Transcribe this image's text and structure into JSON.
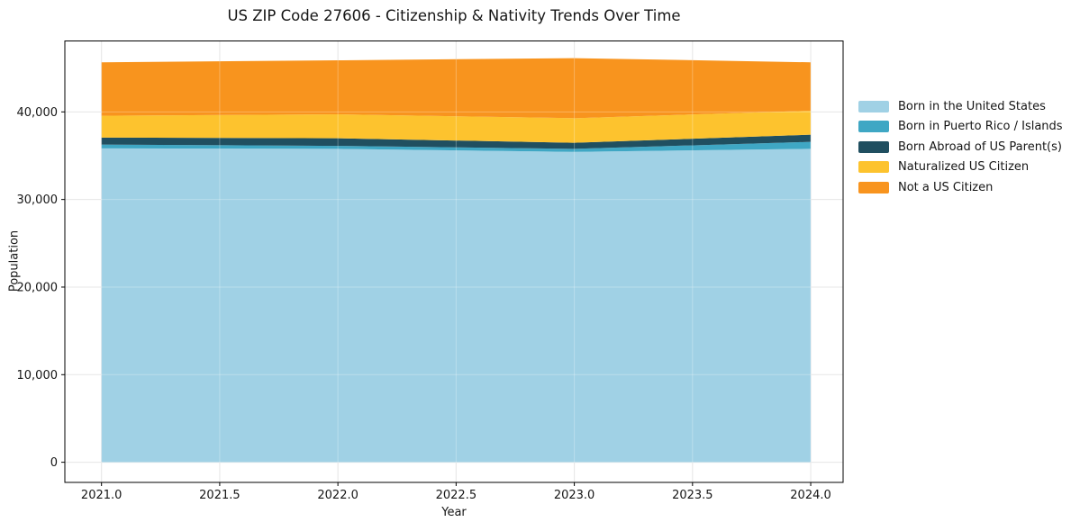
{
  "chart_data": {
    "type": "area",
    "stacked": true,
    "title": "US ZIP Code 27606 - Citizenship & Nativity Trends Over Time",
    "xlabel": "Year",
    "ylabel": "Population",
    "x": [
      2021,
      2022,
      2023,
      2024
    ],
    "series": [
      {
        "name": "Born in the United States",
        "color": "#a0d1e5",
        "values": [
          35840,
          35780,
          35440,
          35780
        ]
      },
      {
        "name": "Born in Puerto Rico / Islands",
        "color": "#3fa7c4",
        "values": [
          430,
          340,
          340,
          800
        ]
      },
      {
        "name": "Born Abroad of US Parent(s)",
        "color": "#204f60",
        "values": [
          800,
          870,
          690,
          820
        ]
      },
      {
        "name": "Naturalized US Citizen",
        "color": "#fdc32e",
        "values": [
          2490,
          2730,
          2810,
          2730
        ]
      },
      {
        "name": "Not a US Citizen",
        "color": "#f8941e",
        "values": [
          6100,
          6170,
          6860,
          5530
        ]
      }
    ],
    "totals": [
      45660,
      45890,
      46140,
      45660
    ],
    "xlim": [
      2020.845,
      2024.137
    ],
    "ylim": [
      -2300,
      48100
    ],
    "xticks": {
      "values": [
        2021.0,
        2021.5,
        2022.0,
        2022.5,
        2023.0,
        2023.5,
        2024.0
      ],
      "labels": [
        "2021.0",
        "2021.5",
        "2022.0",
        "2022.5",
        "2023.0",
        "2023.5",
        "2024.0"
      ]
    },
    "yticks": {
      "values": [
        0,
        10000,
        20000,
        30000,
        40000
      ],
      "labels": [
        "0",
        "10,000",
        "20,000",
        "30,000",
        "40,000"
      ]
    },
    "grid": true,
    "grid_color": "#dedede",
    "spine_color": "#000000",
    "legend_position": "right outside"
  }
}
